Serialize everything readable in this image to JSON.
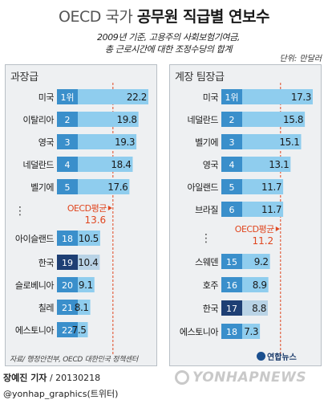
{
  "header": {
    "title_light": "OECD 국가",
    "title_bold": "공무원 직급별 연보수",
    "subtitle_line1": "2009년 기준, 고용주의 사회보험기여금,",
    "subtitle_line2": "총 근로시간에 대한 조정수당의 합계",
    "unit": "단위: 만달러"
  },
  "chart_data": [
    {
      "type": "bar",
      "title": "과장급",
      "categories": [
        "미국",
        "이탈리아",
        "영국",
        "네덜란드",
        "벨기에",
        "아이슬랜드",
        "한국",
        "슬로베니아",
        "칠레",
        "에스토니아"
      ],
      "ranks": [
        "1위",
        "2",
        "3",
        "4",
        "5",
        "18",
        "19",
        "20",
        "21",
        "22"
      ],
      "values": [
        22.2,
        19.8,
        19.3,
        18.4,
        17.6,
        10.5,
        10.4,
        9.1,
        8.1,
        7.5
      ],
      "value_labels": [
        "22.2",
        "19.8",
        "19.3",
        "18.4",
        "17.6",
        "10.5",
        "10.4",
        "9.1",
        "8.1",
        "7.5"
      ],
      "highlight": "한국",
      "average_label": "OECD평균",
      "average": 13.6,
      "average_text": "13.6",
      "ellipsis": "⋮"
    },
    {
      "type": "bar",
      "title": "계장 팀장급",
      "categories": [
        "미국",
        "네덜란드",
        "벨기에",
        "영국",
        "아일랜드",
        "브라질",
        "스웨덴",
        "호주",
        "한국",
        "에스토니아"
      ],
      "ranks": [
        "1위",
        "2",
        "3",
        "4",
        "5",
        "6",
        "15",
        "16",
        "17",
        "18"
      ],
      "values": [
        17.3,
        15.8,
        15.1,
        13.1,
        11.7,
        11.7,
        9.2,
        8.9,
        8.8,
        7.3
      ],
      "value_labels": [
        "17.3",
        "15.8",
        "15.1",
        "13.1",
        "11.7",
        "11.7",
        "9.2",
        "8.9",
        "8.8",
        "7.3"
      ],
      "highlight": "한국",
      "average_label": "OECD평균",
      "average": 11.2,
      "average_text": "11.2",
      "ellipsis": "⋮"
    }
  ],
  "footer": {
    "source": "자료/ 행정안전부, OECD 대한민국 정책센터",
    "logo": "연합뉴스",
    "reporter_name": "장예진 기자",
    "date": "/ 20130218",
    "handle": "@yonhap_graphics(트위터)",
    "watermark": "YONHAPNEWS"
  },
  "colors": {
    "bar": "#8fcdee",
    "bar_highlight": "#b9d3e6",
    "rank_box": "#3a8fcb",
    "rank_box_highlight": "#1e3f74",
    "average_line": "#e0461f",
    "average_text": "#e0461f"
  }
}
